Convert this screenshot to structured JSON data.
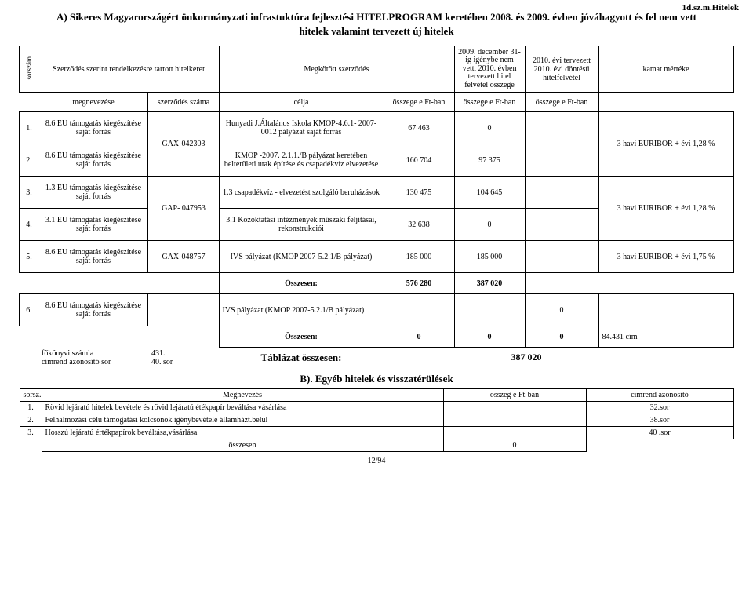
{
  "topRight": "1d.sz.m.Hitelek",
  "titleA": "A) Sikeres Magyarországért önkormányzati infrastuktúra fejlesztési HITELPROGRAM keretében 2008. és 2009. évben jóváhagyott  és fel nem vett",
  "titleA2": "hitelek valamint tervezett új hitelek",
  "headerA": {
    "sorszam": "sorszám",
    "hitelkeret": "Szerződés szerint rendelkezésre tartott  hitelkeret",
    "megkotott": "Megkötött szerződés",
    "blockSmall": "2009. december 31-ig igénybe nem vett, 2010. évben tervezett hitel felvétel összege",
    "tervezett": "2010. évi tervezett 2010. évi döntésű hitelfelvétel",
    "kamat": "kamat mértéke",
    "sub_megnevezese": "megnevezése",
    "sub_szerzSzama": "szerződés száma",
    "sub_celja": "célja",
    "sub_osszFt1": "összege e Ft-ban",
    "sub_osszFt2": "összege e Ft-ban",
    "sub_osszFt3": "összege e Ft-ban"
  },
  "rowsA": [
    {
      "n": "1.",
      "megnev": "8.6 EU támogatás kiegészítése saját forrás",
      "szerz": "GAX-042303",
      "cel": "Hunyadi J.Általános Iskola KMOP-4.6.1- 2007-0012 pályázat saját forrás",
      "v1": "67 463",
      "v2": "0",
      "rate": "3 havi EURIBOR + évi 1,28 %",
      "szerzSpan": 2,
      "rateSpan": 2
    },
    {
      "n": "2.",
      "megnev": "8.6 EU támogatás kiegészítése saját forrás",
      "szerz": "",
      "cel": "KMOP -2007. 2.1.1./B pályázat keretében belterületi utak építése és csapadékvíz elvezetése",
      "v1": "160 704",
      "v2": "97 375",
      "rate": ""
    },
    {
      "n": "3.",
      "megnev": "1.3 EU támogatás kiegészítése saját forrás",
      "szerz": "GAP- 047953",
      "cel": "1.3 csapadékvíz - elvezetést szolgáló beruházások",
      "v1": "130 475",
      "v2": "104 645",
      "rate": "3 havi EURIBOR + évi 1,28 %",
      "szerzSpan": 2,
      "rateSpan": 2
    },
    {
      "n": "4.",
      "megnev": "3.1 EU támogatás kiegészítése saját forrás",
      "szerz": "",
      "cel": "3.1 Közoktatási intézmények műszaki feljításai, rekonstrukciói",
      "v1": "32 638",
      "v2": "0",
      "rate": ""
    },
    {
      "n": "5.",
      "megnev": "8.6 EU támogatás kiegészítése saját forrás",
      "szerz": "GAX-048757",
      "cel": "IVS pályázat (KMOP 2007-5.2.1/B pályázat)",
      "v1": "185 000",
      "v2": "185 000",
      "rate": "3 havi EURIBOR + évi 1,75 %"
    }
  ],
  "sum1": {
    "label": "Összesen:",
    "v1": "576 280",
    "v2": "387 020"
  },
  "row6": {
    "n": "6.",
    "megnev": "8.6 EU támogatás kiegészítése saját forrás",
    "cel": "IVS pályázat (KMOP 2007-5.2.1/B pályázat)",
    "terv": "0"
  },
  "sum2": {
    "label": "Összesen:",
    "v1": "0",
    "v2": "0",
    "v3": "0",
    "note": "84.431 cím"
  },
  "fokonyv": {
    "k1": "főkönyvi számla",
    "v1": "431.",
    "k2": "címrend azonosító sor",
    "v2": "40. sor"
  },
  "tablOssz": {
    "label": "Táblázat összesen:",
    "value": "387 020"
  },
  "titleB": "B). Egyéb hitelek és visszatérülések",
  "headerB": {
    "sorsz": "sorsz.",
    "megnev": "Megnevezés",
    "ossz": "összeg e Ft-ban",
    "cimrend": "címrend azonosító"
  },
  "rowsB": [
    {
      "n": "1.",
      "t": "Rövid lejáratú hitelek bevétele és rövid lejáratú étékpapír beváltása vásárlása",
      "c": "32.sor"
    },
    {
      "n": "2.",
      "t": "Felhalmozási  célú támogatási kölcsönök igénybevétele államházt.belül",
      "c": "38.sor"
    },
    {
      "n": "3.",
      "t": "Hosszú lejáratú értékpapírok beváltása,vásárlása",
      "c": "40 .sor"
    }
  ],
  "sumB": {
    "label": "összesen",
    "value": "0"
  },
  "pageNum": "12/94",
  "colsA": [
    24,
    140,
    90,
    210,
    90,
    90,
    94,
    172
  ],
  "colsB": [
    28,
    512,
    182,
    188
  ]
}
